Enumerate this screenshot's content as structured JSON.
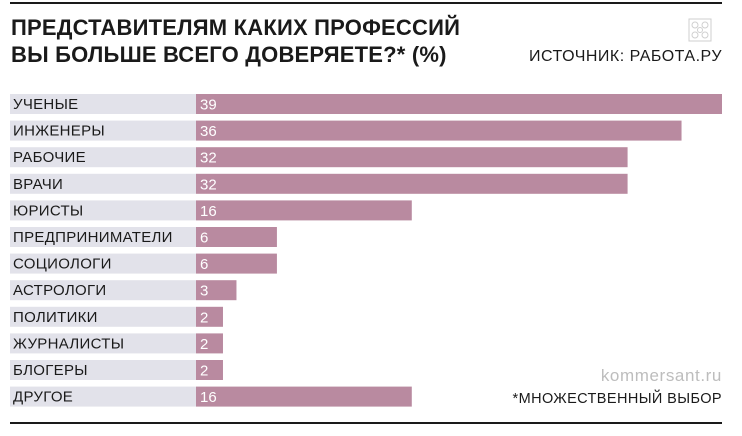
{
  "header": {
    "title_line1": "ПРЕДСТАВИТЕЛЯМ КАКИХ ПРОФЕССИЙ",
    "title_line2": "ВЫ БОЛЬШЕ ВСЕГО ДОВЕРЯЕТЕ?* (%)",
    "source": "ИСТОЧНИК: РАБОТА.РУ"
  },
  "footer": {
    "watermark": "kommersant.ru",
    "footnote": "*МНОЖЕСТВЕННЫЙ ВЫБОР"
  },
  "colors": {
    "bar": "#b98aa0",
    "label_band": "#e2e2ea",
    "text": "#1a1a1a",
    "value_text": "#ffffff"
  },
  "chart_data": {
    "type": "bar",
    "orientation": "horizontal",
    "categories": [
      "УЧЕНЫЕ",
      "ИНЖЕНЕРЫ",
      "РАБОЧИЕ",
      "ВРАЧИ",
      "ЮРИСТЫ",
      "ПРЕДПРИНИМАТЕЛИ",
      "СОЦИОЛОГИ",
      "АСТРОЛОГИ",
      "ПОЛИТИКИ",
      "ЖУРНАЛИСТЫ",
      "БЛОГЕРЫ",
      "ДРУГОЕ"
    ],
    "values": [
      39,
      36,
      32,
      32,
      16,
      6,
      6,
      3,
      2,
      2,
      2,
      16
    ],
    "xlim": [
      0,
      39
    ],
    "grid": false,
    "legend": "none"
  }
}
